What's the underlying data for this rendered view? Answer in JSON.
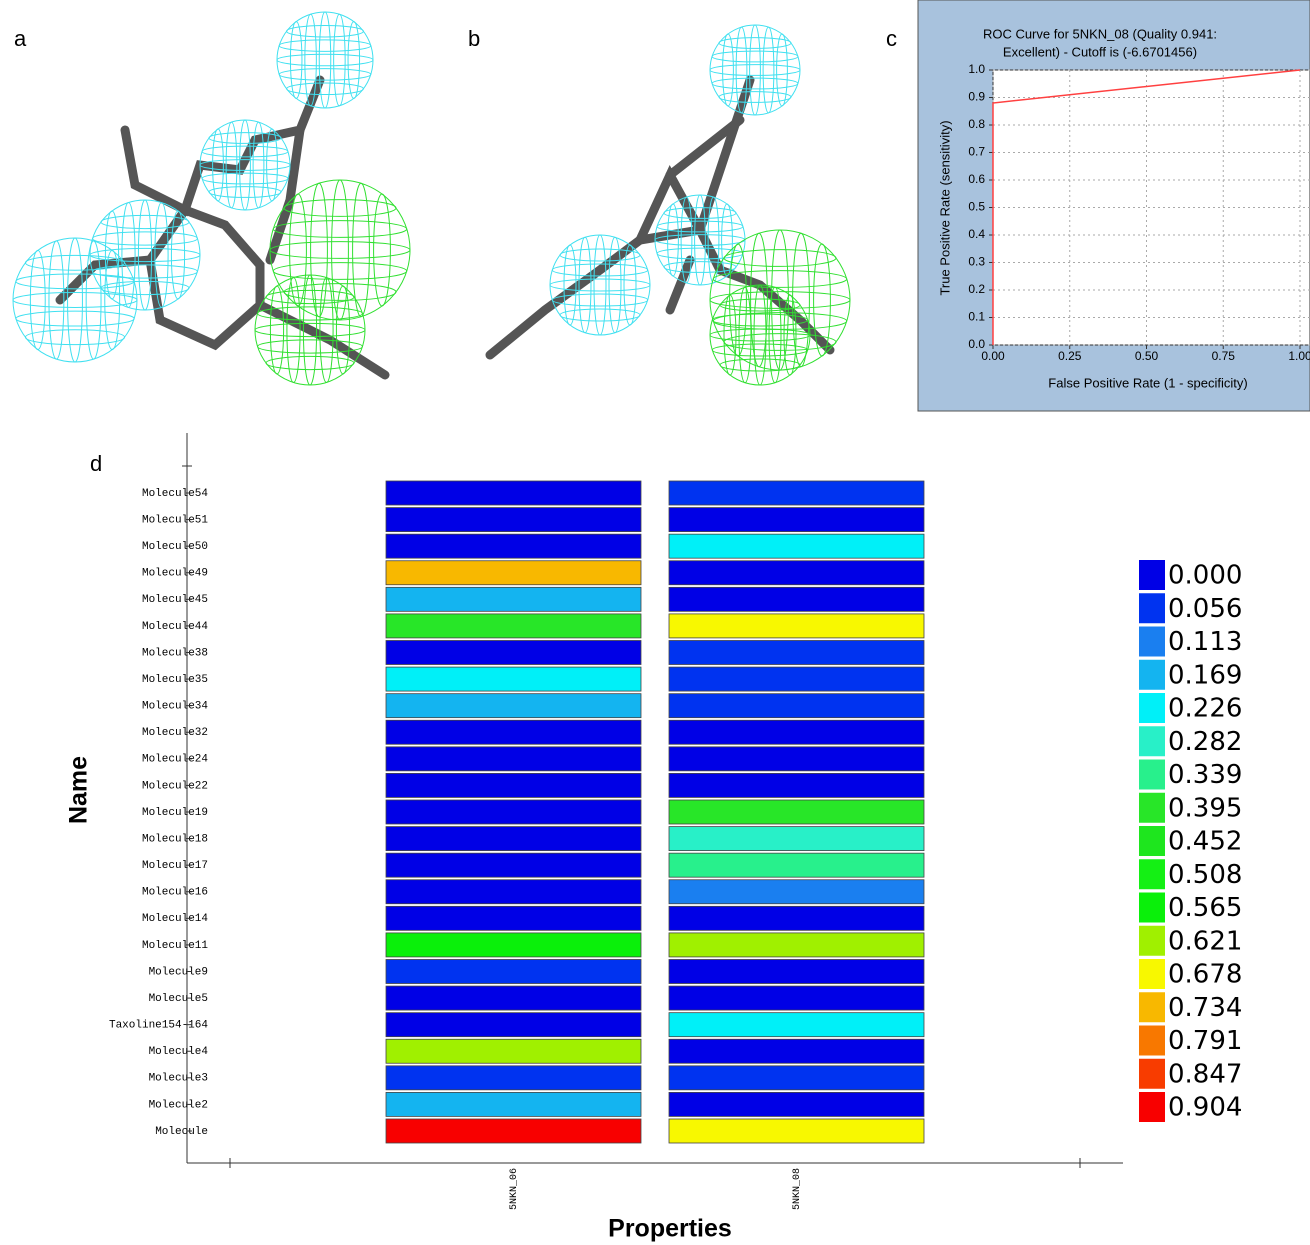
{
  "panels": [
    "a",
    "b",
    "c",
    "d"
  ],
  "chart_data": [
    {
      "type": "line",
      "title": [
        "ROC Curve for  5NKN_08  (Quality 0.941:",
        "Excellent) - Cutoff is  (-6.6701456)"
      ],
      "xlabel": "False Positive Rate (1 - specificity)",
      "ylabel": "True Positive Rate (sensitivity)",
      "series": [
        {
          "color": "#ff4040",
          "x": [
            0,
            0,
            1
          ],
          "values": [
            0,
            0.88,
            1
          ]
        }
      ],
      "xlim": [
        0,
        1
      ],
      "ylim": [
        0,
        1
      ],
      "xticks": [
        {
          "value": 0,
          "label": "0.00"
        },
        {
          "value": 0.25,
          "label": "0.25"
        },
        {
          "value": 0.5,
          "label": "0.50"
        },
        {
          "value": 0.75,
          "label": "0.75"
        },
        {
          "value": 1,
          "label": "1.00"
        }
      ],
      "yticks": [
        {
          "value": 0,
          "label": "0.0"
        },
        0.1,
        0.2,
        0.3,
        0.4,
        0.5,
        0.6,
        0.7,
        0.8,
        0.9,
        {
          "value": 1,
          "label": "1.0"
        }
      ],
      "grid": true
    },
    {
      "type": "heatmap",
      "xlabel": "Properties",
      "ylabel": "Name",
      "categories": [
        "Molecule54",
        "Molecule51",
        "Molecule50",
        "Molecule49",
        "Molecule45",
        "Molecule44",
        "Molecule38",
        "Molecule35",
        "Molecule34",
        "Molecule32",
        "Molecule24",
        "Molecule22",
        "Molecule19",
        "Molecule18",
        "Molecule17",
        "Molecule16",
        "Molecule14",
        "Molecule11",
        "Molecule9",
        "Molecule5",
        "Taxoline154-164",
        "Molecule4",
        "Molecule3",
        "Molecule2",
        "Molecule"
      ],
      "series": [
        {
          "name": "5NKN_06",
          "values": [
            0,
            0,
            0,
            0.76,
            0.17,
            0.45,
            0,
            0.23,
            0.17,
            0,
            0,
            0,
            0,
            0,
            0,
            0,
            0,
            0.62,
            0.06,
            0,
            0,
            0.66,
            0.06,
            0.2,
            0.95
          ]
        },
        {
          "name": "5NKN_08",
          "values": [
            0.1,
            0,
            0.26,
            0,
            0,
            0.68,
            0.1,
            0.08,
            0.08,
            0,
            0.03,
            0.01,
            0.42,
            0.3,
            0.37,
            0.15,
            0,
            0.66,
            0,
            0,
            0.26,
            0,
            0.08,
            0,
            0.73
          ]
        }
      ],
      "colorbar": {
        "ticks": [
          {
            "value": 0,
            "label": "0.000"
          },
          0.056,
          0.113,
          0.169,
          0.226,
          0.282,
          0.339,
          0.395,
          0.452,
          0.508,
          0.565,
          0.621,
          0.678,
          0.734,
          0.791,
          0.847,
          0.904
        ],
        "colors": [
          "#0000e6",
          "#0033f0",
          "#1a7ff0",
          "#14b4f0",
          "#00f0f8",
          "#28f0c8",
          "#28f08c",
          "#28e628",
          "#1ee61e",
          "#14f014",
          "#0af00a",
          "#a0f000",
          "#f8f800",
          "#f8b800",
          "#f87800",
          "#f83c00",
          "#f80000"
        ]
      }
    }
  ]
}
